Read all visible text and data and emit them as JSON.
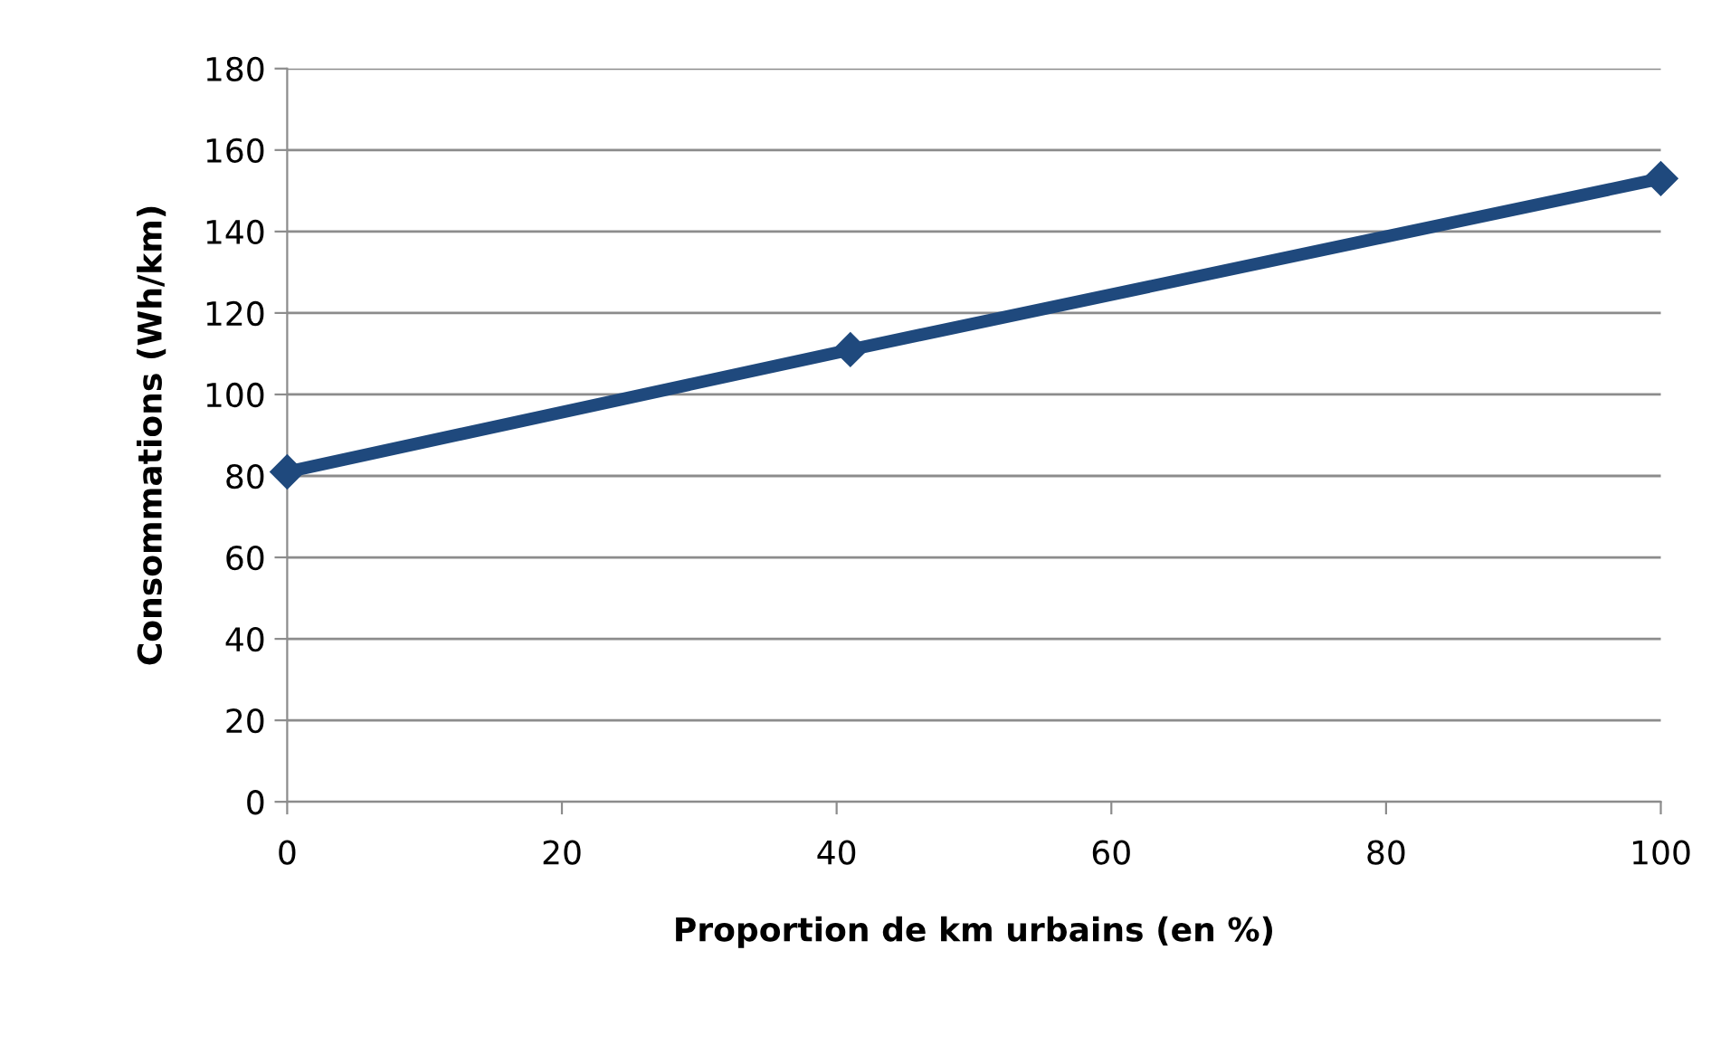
{
  "chart_data": {
    "type": "line",
    "xlabel": "Proportion de km urbains (en %)",
    "ylabel": "Consommations (Wh/km)",
    "x": [
      0,
      41,
      100
    ],
    "series": [
      {
        "color": "#1f497d",
        "values": [
          81,
          111,
          153
        ]
      }
    ],
    "marker": "diamond",
    "line_style": "solid",
    "xlim": [
      0,
      100
    ],
    "xticks": [
      0,
      20,
      40,
      60,
      80,
      100
    ],
    "ylim": [
      0,
      180
    ],
    "yticks": [
      0,
      20,
      40,
      60,
      80,
      100,
      120,
      140,
      160,
      180
    ],
    "grid": "y",
    "legend": false
  }
}
